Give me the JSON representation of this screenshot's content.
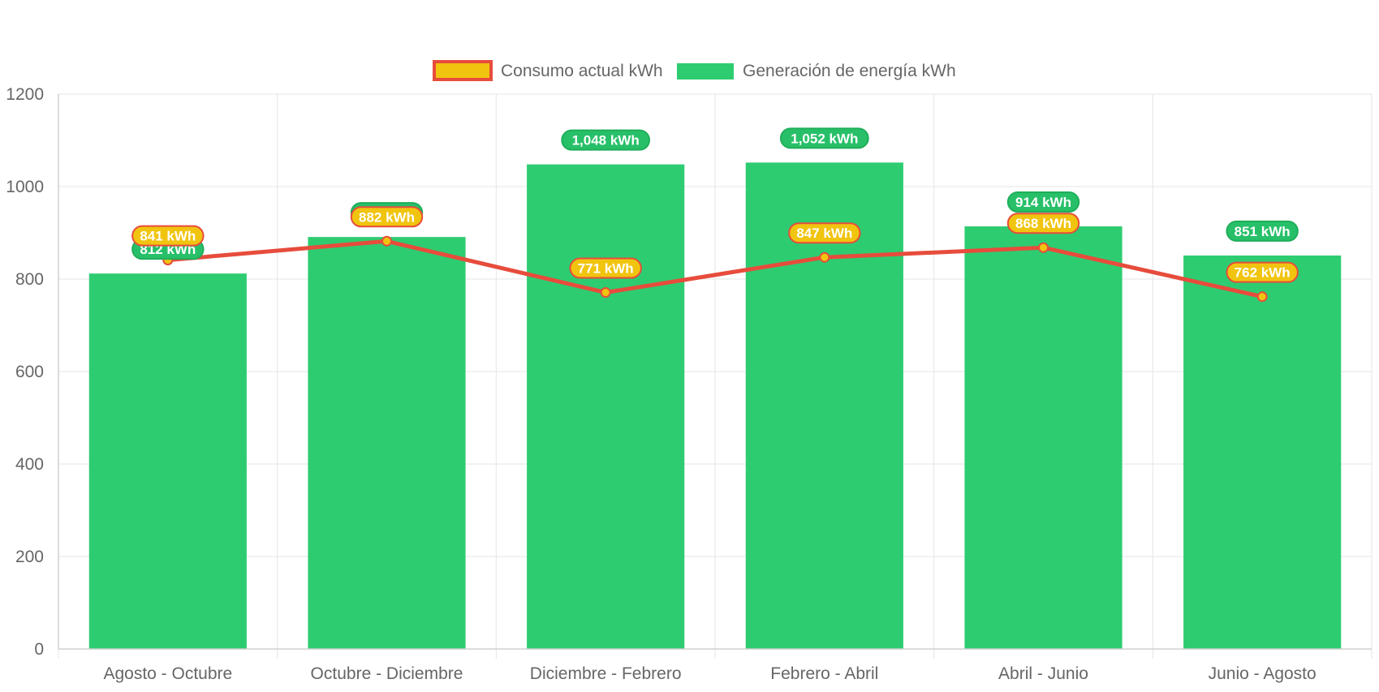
{
  "legend": {
    "consumo_label": "Consumo actual kWh",
    "generacion_label": "Generación de energía kWh"
  },
  "colors": {
    "generation_bar": "#2ecc71",
    "generation_label_bg": "#27c069",
    "consumption_line": "#e74c3c",
    "consumption_fill": "#f1c40f",
    "grid": "#e5e5e5",
    "axis_text": "#666666"
  },
  "chart_data": {
    "type": "bar",
    "categories": [
      "Agosto - Octubre",
      "Octubre - Diciembre",
      "Diciembre - Febrero",
      "Febrero - Abril",
      "Abril - Junio",
      "Junio - Agosto"
    ],
    "series": [
      {
        "name": "Generación de energía kWh",
        "type": "bar",
        "values": [
          812,
          891,
          1048,
          1052,
          914,
          851
        ],
        "labels": [
          "812 kWh",
          "891 kWh",
          "1,048 kWh",
          "1,052 kWh",
          "914 kWh",
          "851 kWh"
        ]
      },
      {
        "name": "Consumo actual kWh",
        "type": "line",
        "values": [
          841,
          882,
          771,
          847,
          868,
          762
        ],
        "labels": [
          "841 kWh",
          "882 kWh",
          "771 kWh",
          "847 kWh",
          "868 kWh",
          "762 kWh"
        ]
      }
    ],
    "yticks": [
      "0",
      "200",
      "400",
      "600",
      "800",
      "1000",
      "1200"
    ],
    "ylim": [
      0,
      1200
    ],
    "grid": true,
    "legend_position": "top"
  }
}
